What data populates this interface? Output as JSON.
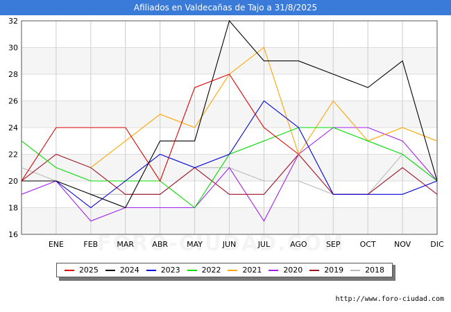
{
  "title": "Afiliados en Valdecañas de Tajo a 31/8/2025",
  "watermark": "FORO-CIUDAD.COM",
  "footer_url": "http://www.foro-ciudad.com",
  "chart_data": {
    "type": "line",
    "title": "Afiliados en Valdecañas de Tajo a 31/8/2025",
    "xlabel": "",
    "ylabel": "",
    "categories": [
      "",
      "ENE",
      "FEB",
      "MAR",
      "ABR",
      "MAY",
      "JUN",
      "JUL",
      "AGO",
      "SEP",
      "OCT",
      "NOV",
      "DIC"
    ],
    "ylim": [
      16,
      32
    ],
    "yticks": [
      16,
      18,
      20,
      22,
      24,
      26,
      28,
      30,
      32
    ],
    "grid": true,
    "legend_position": "bottom",
    "series": [
      {
        "name": "2025",
        "color": "#dd0000",
        "values": [
          20,
          24,
          24,
          24,
          20,
          27,
          28,
          24,
          22,
          null,
          null,
          null,
          null
        ]
      },
      {
        "name": "2024",
        "color": "#000000",
        "values": [
          20,
          20,
          19,
          18,
          23,
          23,
          32,
          29,
          29,
          28,
          27,
          29,
          20
        ]
      },
      {
        "name": "2023",
        "color": "#0000dd",
        "values": [
          20,
          20,
          18,
          20,
          22,
          21,
          22,
          26,
          24,
          19,
          19,
          19,
          20
        ]
      },
      {
        "name": "2022",
        "color": "#00dd00",
        "values": [
          23,
          21,
          20,
          20,
          20,
          18,
          22,
          23,
          24,
          24,
          23,
          22,
          20
        ]
      },
      {
        "name": "2021",
        "color": "#ffa500",
        "values": [
          null,
          null,
          21,
          23,
          25,
          24,
          28,
          30,
          22,
          26,
          23,
          24,
          23
        ]
      },
      {
        "name": "2020",
        "color": "#a020f0",
        "values": [
          19,
          20,
          17,
          18,
          18,
          18,
          21,
          17,
          22,
          24,
          24,
          23,
          20
        ]
      },
      {
        "name": "2019",
        "color": "#a01020",
        "values": [
          20,
          22,
          21,
          19,
          19,
          21,
          19,
          19,
          22,
          19,
          19,
          21,
          19
        ]
      },
      {
        "name": "2018",
        "color": "#bbbbbb",
        "values": [
          21,
          20,
          19,
          19,
          19,
          21,
          21,
          20,
          20,
          19,
          19,
          22,
          20
        ]
      }
    ]
  }
}
